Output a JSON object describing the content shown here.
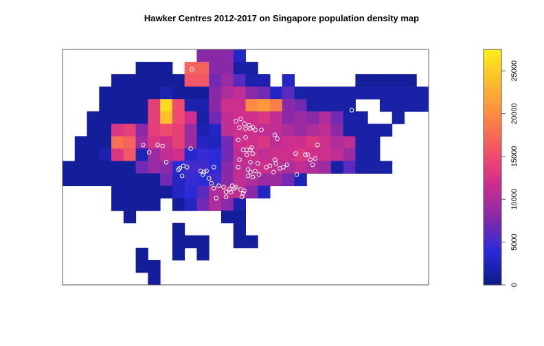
{
  "chart_data": {
    "type": "raster",
    "title": "Hawker Centres 2012-2017 on Singapore population density map",
    "xlim": [
      0,
      30
    ],
    "ylim": [
      0,
      19
    ],
    "zlim": [
      0,
      27500
    ],
    "zticks": [
      0,
      5000,
      10000,
      15000,
      20000,
      25000
    ],
    "colorscale": [
      [
        0,
        "#0d1a86"
      ],
      [
        4000,
        "#2a2ad6"
      ],
      [
        8000,
        "#8a2aa8"
      ],
      [
        12000,
        "#cf2f8c"
      ],
      [
        15000,
        "#f04a6e"
      ],
      [
        20000,
        "#fb8b40"
      ],
      [
        27500,
        "#ffee1a"
      ]
    ],
    "point_color": "#ffffff",
    "grid": [
      [
        null,
        null,
        null,
        null,
        null,
        null,
        null,
        null,
        null,
        null,
        null,
        8000,
        8000,
        8000,
        3000,
        null,
        null,
        null,
        null,
        null,
        null,
        null,
        null,
        null,
        null,
        null,
        null,
        null,
        null,
        null
      ],
      [
        null,
        null,
        null,
        null,
        null,
        null,
        1000,
        1000,
        1000,
        null,
        17000,
        17000,
        8000,
        8000,
        1500,
        1500,
        null,
        null,
        null,
        null,
        null,
        null,
        null,
        null,
        null,
        null,
        null,
        null,
        null,
        null
      ],
      [
        null,
        null,
        null,
        null,
        1000,
        1000,
        1000,
        1000,
        1000,
        1000,
        16000,
        16000,
        7000,
        9000,
        6000,
        2000,
        2000,
        null,
        3000,
        null,
        null,
        null,
        null,
        null,
        1000,
        1000,
        1000,
        1000,
        1000,
        null
      ],
      [
        null,
        null,
        null,
        1000,
        1000,
        1000,
        1000,
        1000,
        2000,
        1000,
        1000,
        1000,
        8000,
        10000,
        11000,
        8000,
        7000,
        3000,
        6000,
        1500,
        1500,
        1500,
        1500,
        1500,
        1500,
        1500,
        1500,
        1500,
        1500,
        1500
      ],
      [
        null,
        null,
        null,
        1000,
        1000,
        1000,
        1000,
        14000,
        26000,
        15000,
        2000,
        2000,
        8000,
        12000,
        12000,
        20000,
        21000,
        19000,
        8000,
        7000,
        1500,
        1500,
        1500,
        1500,
        null,
        null,
        1500,
        1500,
        1500,
        1500
      ],
      [
        null,
        null,
        1000,
        1000,
        1000,
        1000,
        1000,
        14000,
        24000,
        15000,
        12000,
        1500,
        7000,
        11000,
        12000,
        12000,
        13000,
        11000,
        8000,
        9000,
        8000,
        10000,
        7000,
        1500,
        1500,
        null,
        null,
        1500,
        null,
        null
      ],
      [
        null,
        null,
        1000,
        1000,
        13000,
        14000,
        8000,
        14000,
        15000,
        14000,
        9000,
        2000,
        3000,
        11000,
        12000,
        12000,
        11000,
        11000,
        10000,
        9000,
        10000,
        11000,
        8000,
        1500,
        1500,
        1500,
        1500,
        null,
        null,
        null
      ],
      [
        null,
        1000,
        1000,
        1000,
        18000,
        17000,
        9000,
        13000,
        12000,
        14000,
        9000,
        3000,
        2500,
        7000,
        12000,
        12000,
        13000,
        11000,
        12000,
        12000,
        13000,
        12000,
        10000,
        11000,
        1500,
        1500,
        null,
        null,
        null,
        null
      ],
      [
        null,
        1000,
        1000,
        2000,
        13000,
        16000,
        2500,
        9000,
        11000,
        12000,
        3500,
        4500,
        4000,
        7000,
        11000,
        12000,
        11000,
        12000,
        12000,
        13000,
        12000,
        12000,
        11000,
        9000,
        1500,
        1500,
        null,
        null,
        null,
        null
      ],
      [
        1000,
        1000,
        1000,
        1000,
        1000,
        1000,
        7000,
        9000,
        8000,
        4000,
        5000,
        5000,
        4000,
        8000,
        11000,
        11000,
        12000,
        11000,
        10000,
        11000,
        10000,
        9000,
        1500,
        6000,
        1500,
        1500,
        1500,
        null,
        null,
        null
      ],
      [
        1000,
        1000,
        1000,
        1000,
        1000,
        1000,
        1000,
        1000,
        7000,
        3000,
        4500,
        4000,
        5000,
        8000,
        11000,
        10000,
        9000,
        9000,
        7000,
        2500,
        null,
        null,
        null,
        null,
        null,
        null,
        null,
        null,
        null,
        null
      ],
      [
        null,
        null,
        null,
        null,
        1000,
        1000,
        1000,
        1000,
        1000,
        3000,
        4000,
        6000,
        10000,
        11000,
        11000,
        8000,
        3000,
        null,
        null,
        null,
        null,
        null,
        null,
        null,
        null,
        null,
        null,
        null,
        null,
        null
      ],
      [
        null,
        null,
        null,
        null,
        1000,
        1000,
        1000,
        1000,
        null,
        1000,
        3000,
        7000,
        10000,
        8000,
        2000,
        null,
        null,
        null,
        null,
        null,
        null,
        null,
        null,
        null,
        null,
        null,
        null,
        null,
        null,
        null
      ],
      [
        null,
        null,
        null,
        null,
        null,
        1000,
        null,
        null,
        null,
        null,
        null,
        null,
        null,
        1000,
        1000,
        null,
        null,
        null,
        null,
        null,
        null,
        null,
        null,
        null,
        null,
        null,
        null,
        null,
        null,
        null
      ],
      [
        null,
        null,
        null,
        null,
        null,
        null,
        null,
        null,
        null,
        1000,
        null,
        null,
        null,
        null,
        1000,
        null,
        null,
        null,
        null,
        null,
        null,
        null,
        null,
        null,
        null,
        null,
        null,
        null,
        null,
        null
      ],
      [
        null,
        null,
        null,
        null,
        null,
        null,
        null,
        null,
        null,
        1000,
        1000,
        1000,
        null,
        null,
        1000,
        1000,
        null,
        null,
        null,
        null,
        null,
        null,
        null,
        null,
        null,
        null,
        null,
        null,
        null,
        null
      ],
      [
        null,
        null,
        null,
        null,
        null,
        null,
        1000,
        null,
        null,
        1000,
        null,
        1000,
        null,
        null,
        null,
        null,
        null,
        null,
        null,
        null,
        null,
        null,
        null,
        null,
        null,
        null,
        null,
        null,
        null,
        null
      ],
      [
        null,
        null,
        null,
        null,
        null,
        null,
        1000,
        1000,
        null,
        null,
        null,
        null,
        null,
        null,
        null,
        null,
        null,
        null,
        null,
        null,
        null,
        null,
        null,
        null,
        null,
        null,
        null,
        null,
        null,
        null
      ],
      [
        null,
        null,
        null,
        null,
        null,
        null,
        null,
        1000,
        null,
        null,
        null,
        null,
        null,
        null,
        null,
        null,
        null,
        null,
        null,
        null,
        null,
        null,
        null,
        null,
        null,
        null,
        null,
        null,
        null,
        null
      ]
    ],
    "points": {
      "x": [
        10.6,
        23.7,
        6.6,
        7.8,
        8.2,
        7.1,
        8.5,
        10.5,
        9.6,
        9.5,
        9.9,
        10.2,
        9.8,
        11.3,
        11.6,
        11.8,
        12.4,
        12.0,
        11.5,
        12.2,
        12.4,
        12.8,
        12.6,
        13.2,
        13.4,
        13.7,
        13.9,
        14.1,
        13.8,
        13.4,
        14.6,
        14.9,
        14.8,
        14.7,
        14.2,
        14.2,
        14.6,
        14.5,
        14.9,
        15.3,
        15.4,
        15.6,
        15.0,
        15.8,
        16.3,
        14.4,
        15.0,
        14.8,
        15.1,
        15.4,
        15.5,
        15.6,
        15.1,
        14.5,
        15.4,
        16.0,
        15.8,
        15.4,
        15.2,
        15.6,
        16.1,
        16.7,
        17.0,
        17.4,
        17.5,
        17.3,
        18.1,
        18.4,
        17.8,
        19.2,
        19.1,
        19.9,
        20.1,
        20.3,
        20.7,
        20.9,
        20.5,
        17.4,
        17.6,
        14.4,
        15.2
      ],
      "y": [
        1.6,
        4.9,
        7.7,
        7.7,
        7.8,
        8.3,
        9.1,
        8.0,
        9.6,
        9.7,
        9.4,
        9.5,
        10.2,
        9.8,
        9.9,
        9.8,
        9.5,
        10.4,
        10.1,
        10.8,
        11.2,
        11.0,
        12.0,
        11.1,
        11.5,
        11.3,
        11.0,
        11.2,
        11.5,
        11.9,
        11.3,
        11.4,
        11.6,
        11.9,
        11.1,
        5.8,
        5.6,
        6.3,
        6.0,
        6.1,
        6.4,
        6.3,
        6.4,
        6.5,
        6.5,
        7.3,
        7.1,
        8.1,
        8.1,
        8.1,
        7.9,
        8.4,
        8.5,
        8.9,
        9.1,
        9.2,
        9.8,
        9.9,
        10.2,
        10.3,
        10.1,
        9.5,
        9.4,
        8.9,
        9.2,
        9.9,
        9.5,
        9.3,
        9.6,
        10.1,
        8.4,
        8.5,
        8.5,
        8.9,
        8.8,
        7.7,
        9.3,
        6.9,
        7.2,
        9.5,
        9.7
      ]
    }
  }
}
